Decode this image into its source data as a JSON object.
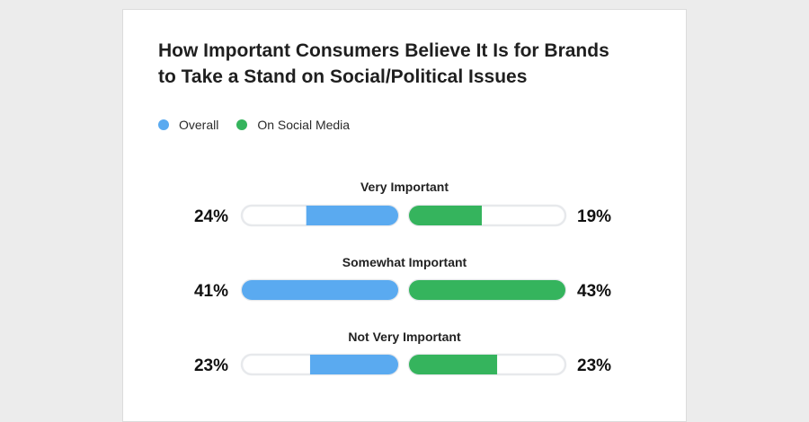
{
  "chart_data": {
    "type": "bar",
    "layout": "butterfly",
    "title_lines": [
      "How Important Consumers Believe It Is for Brands",
      "to Take a Stand on Social/Political Issues"
    ],
    "categories": [
      "Very Important",
      "Somewhat Important",
      "Not Very Important"
    ],
    "series": [
      {
        "name": "Overall",
        "color": "#5aaaf0",
        "values": [
          24,
          41,
          23
        ]
      },
      {
        "name": "On Social Media",
        "color": "#35b45d",
        "values": [
          19,
          43,
          23
        ]
      }
    ],
    "value_labels": {
      "Overall": [
        "24%",
        "41%",
        "23%"
      ],
      "On Social Media": [
        "19%",
        "43%",
        "23%"
      ]
    },
    "xlim": [
      0,
      100
    ],
    "legend_position": "top-left",
    "track_color": "#e7e9ec"
  }
}
